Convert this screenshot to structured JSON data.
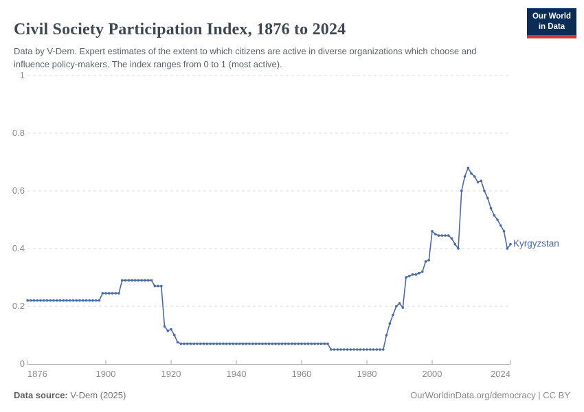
{
  "header": {
    "title": "Civil Society Participation Index, 1876 to 2024",
    "subtitle": "Data by V-Dem. Expert estimates of the extent to which citizens are active in diverse organizations which choose and influence policy-makers. The index ranges from 0 to 1 (most active).",
    "logo": {
      "line1": "Our World",
      "line2": "in Data",
      "bg_color": "#0b2c55",
      "accent_color": "#cf3a2f"
    }
  },
  "chart_data": {
    "type": "line",
    "title": "Civil Society Participation Index, 1876 to 2024",
    "xlabel": "",
    "ylabel": "",
    "xlim": [
      1876,
      2024
    ],
    "ylim": [
      0,
      1
    ],
    "grid": "horizontal-dashed",
    "legend_position": "end-of-line-label",
    "x_ticks": [
      1876,
      1900,
      1920,
      1940,
      1960,
      1980,
      2000,
      2024
    ],
    "y_ticks": [
      {
        "v": 0,
        "label": "0"
      },
      {
        "v": 0.2,
        "label": "0.2"
      },
      {
        "v": 0.4,
        "label": "0.4"
      },
      {
        "v": 0.6,
        "label": "0.6"
      },
      {
        "v": 0.8,
        "label": "0.8"
      },
      {
        "v": 1,
        "label": "1"
      }
    ],
    "series": [
      {
        "name": "Kyrgyzstan",
        "color": "#4a69a5",
        "start_year": 1876,
        "end_year": 2024,
        "values": [
          0.22,
          0.22,
          0.22,
          0.22,
          0.22,
          0.22,
          0.22,
          0.22,
          0.22,
          0.22,
          0.22,
          0.22,
          0.22,
          0.22,
          0.22,
          0.22,
          0.22,
          0.22,
          0.22,
          0.22,
          0.22,
          0.22,
          0.22,
          0.245,
          0.245,
          0.245,
          0.245,
          0.245,
          0.245,
          0.29,
          0.29,
          0.29,
          0.29,
          0.29,
          0.29,
          0.29,
          0.29,
          0.29,
          0.29,
          0.27,
          0.27,
          0.27,
          0.13,
          0.115,
          0.12,
          0.1,
          0.075,
          0.07,
          0.07,
          0.07,
          0.07,
          0.07,
          0.07,
          0.07,
          0.07,
          0.07,
          0.07,
          0.07,
          0.07,
          0.07,
          0.07,
          0.07,
          0.07,
          0.07,
          0.07,
          0.07,
          0.07,
          0.07,
          0.07,
          0.07,
          0.07,
          0.07,
          0.07,
          0.07,
          0.07,
          0.07,
          0.07,
          0.07,
          0.07,
          0.07,
          0.07,
          0.07,
          0.07,
          0.07,
          0.07,
          0.07,
          0.07,
          0.07,
          0.07,
          0.07,
          0.07,
          0.07,
          0.07,
          0.05,
          0.05,
          0.05,
          0.05,
          0.05,
          0.05,
          0.05,
          0.05,
          0.05,
          0.05,
          0.05,
          0.05,
          0.05,
          0.05,
          0.05,
          0.05,
          0.05,
          0.1,
          0.14,
          0.17,
          0.2,
          0.21,
          0.195,
          0.3,
          0.305,
          0.31,
          0.31,
          0.315,
          0.32,
          0.355,
          0.36,
          0.46,
          0.45,
          0.445,
          0.445,
          0.445,
          0.445,
          0.435,
          0.415,
          0.4,
          0.6,
          0.65,
          0.68,
          0.66,
          0.65,
          0.63,
          0.635,
          0.6,
          0.575,
          0.54,
          0.515,
          0.5,
          0.48,
          0.46,
          0.4,
          0.415
        ]
      }
    ]
  },
  "footer": {
    "source_label": "Data source:",
    "source_value": " V-Dem (2025)",
    "credit": "OurWorldinData.org/democracy | CC BY"
  }
}
